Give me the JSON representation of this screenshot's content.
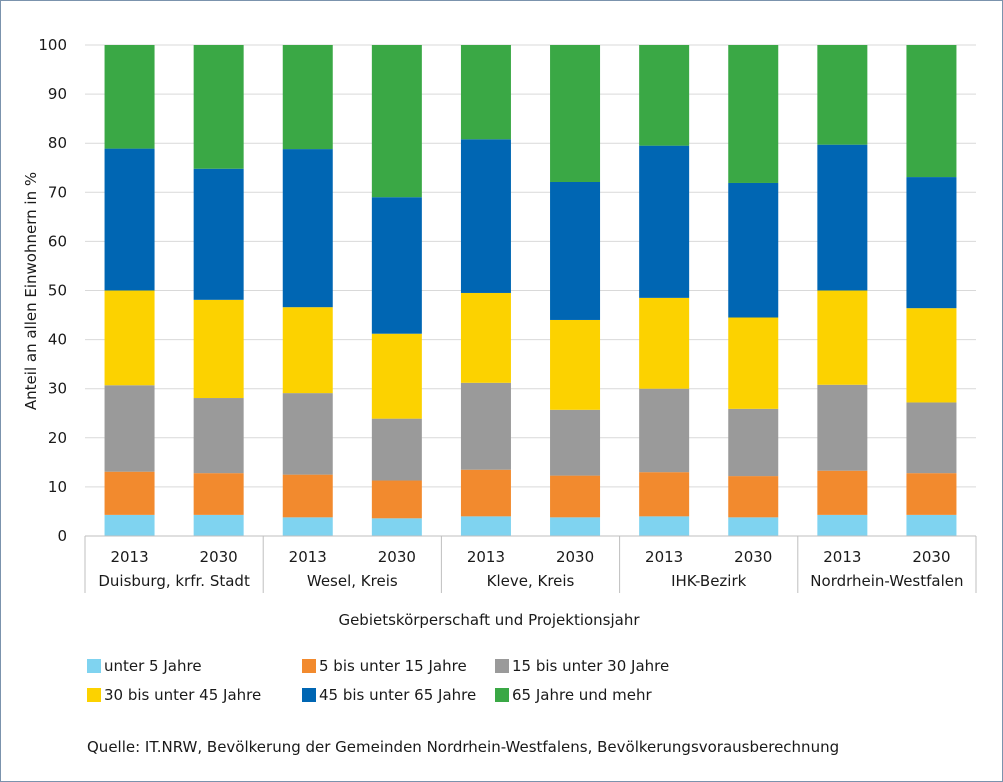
{
  "chart_data": {
    "type": "bar",
    "stacked": true,
    "ylim": [
      0,
      100
    ],
    "yticks": [
      0,
      10,
      20,
      30,
      40,
      50,
      60,
      70,
      80,
      90,
      100
    ],
    "ylabel": "Anteil an allen Einwohnern in %",
    "xlabel": "Gebietskörperschaft und Projektionsjahr",
    "groups": [
      "Duisburg, krfr. Stadt",
      "Wesel, Kreis",
      "Kleve, Kreis",
      "IHK-Bezirk",
      "Nordrhein-Westfalen"
    ],
    "years": [
      "2013",
      "2030"
    ],
    "series": [
      {
        "name": "unter 5 Jahre",
        "color": "#7fd3f0",
        "values": [
          4.3,
          4.3,
          3.8,
          3.6,
          4.0,
          3.8,
          4.0,
          3.8,
          4.3,
          4.3
        ]
      },
      {
        "name": "5 bis unter 15 Jahre",
        "color": "#f28a2e",
        "values": [
          8.8,
          8.5,
          8.7,
          7.7,
          9.5,
          8.5,
          9.0,
          8.4,
          9.0,
          8.5
        ]
      },
      {
        "name": "15 bis unter 30 Jahre",
        "color": "#9a9a9a",
        "values": [
          17.6,
          15.3,
          16.6,
          12.6,
          17.7,
          13.4,
          17.0,
          13.7,
          17.5,
          14.4
        ]
      },
      {
        "name": "30 bis unter 45 Jahre",
        "color": "#fcd200",
        "values": [
          19.3,
          20.0,
          17.5,
          17.3,
          18.3,
          18.3,
          18.5,
          18.6,
          19.2,
          19.2
        ]
      },
      {
        "name": "45 bis unter 65 Jahre",
        "color": "#0066b3",
        "values": [
          28.9,
          26.7,
          32.2,
          27.8,
          31.3,
          28.1,
          31.0,
          27.4,
          29.7,
          26.7
        ]
      },
      {
        "name": "65 Jahre und mehr",
        "color": "#3aa845",
        "values": [
          21.1,
          25.2,
          21.2,
          31.0,
          19.2,
          27.9,
          20.5,
          28.1,
          20.3,
          26.9
        ]
      }
    ]
  },
  "legend_rows": [
    [
      0,
      1,
      2
    ],
    [
      3,
      4,
      5
    ]
  ],
  "source_text": "Quelle: IT.NRW, Bevölkerung der Gemeinden Nordrhein-Westfalens, Bevölkerungsvorausberechnung"
}
